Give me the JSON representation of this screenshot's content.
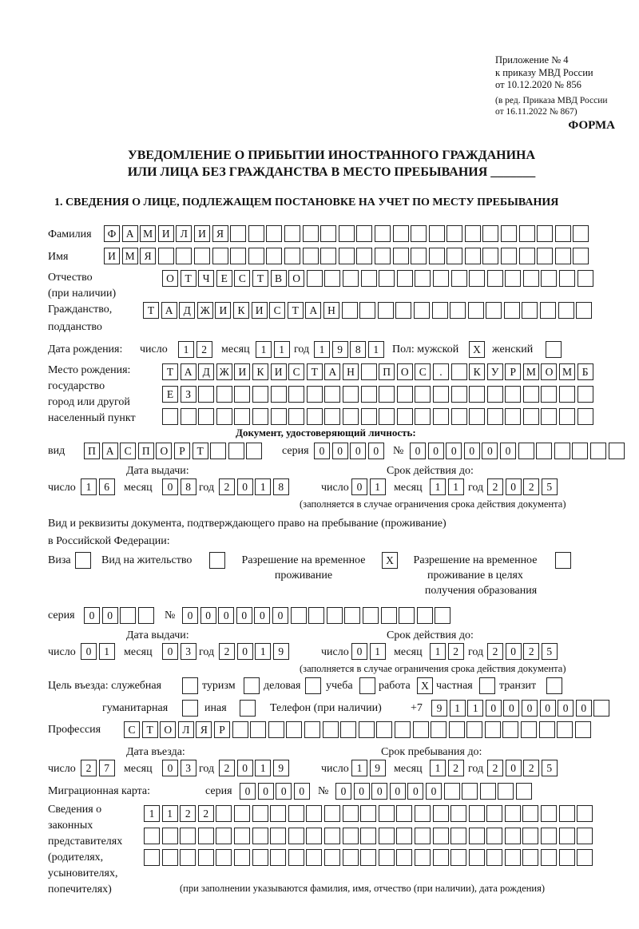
{
  "header": {
    "line1": "Приложение № 4",
    "line2": "к приказу МВД России",
    "line3": "от 10.12.2020 № 856",
    "line4": "(в ред. Приказа МВД России",
    "line5": "от 16.11.2022 № 867)",
    "forma": "ФОРМА"
  },
  "title": {
    "line1": "УВЕДОМЛЕНИЕ О ПРИБЫТИИ ИНОСТРАННОГО ГРАЖДАНИНА",
    "line2": "ИЛИ ЛИЦА БЕЗ ГРАЖДАНСТВА В МЕСТО ПРЕБЫВАНИЯ _______"
  },
  "section1": "1. СВЕДЕНИЯ О ЛИЦЕ, ПОДЛЕЖАЩЕМ ПОСТАНОВКЕ НА УЧЕТ ПО МЕСТУ ПРЕБЫВАНИЯ",
  "labels": {
    "surname": "Фамилия",
    "name": "Имя",
    "patronymic": "Отчество",
    "patronymic2": "(при наличии)",
    "citizenship": "Гражданство,",
    "citizenship2": "подданство",
    "birthdate": "Дата рождения:",
    "day": "число",
    "month": "месяц",
    "year": "год",
    "sex": "Пол: мужской",
    "female": "женский",
    "birthplace": "Место рождения:",
    "bp2": "государство",
    "bp3": "город или другой",
    "bp4": "населенный пункт",
    "iddoc": "Документ, удостоверяющий личность:",
    "kind": "вид",
    "series": "серия",
    "number": "№",
    "issue_date": "Дата выдачи:",
    "valid_until": "Срок действия до:",
    "valid_note": "(заполняется в случае ограничения срока действия документа)",
    "rightdoc1": "Вид и реквизиты документа, подтверждающего право на пребывание (проживание)",
    "rightdoc2": "в Российской Федерации:",
    "visa": "Виза",
    "residence": "Вид на жительство",
    "trp1": "Разрешение на временное",
    "trp2": "проживание",
    "trpe1": "Разрешение на временное",
    "trpe2": "проживание в целях",
    "trpe3": "получения образования",
    "purpose": "Цель въезда: служебная",
    "tourism": "туризм",
    "business": "деловая",
    "study": "учеба",
    "work": "работа",
    "private": "частная",
    "transit": "транзит",
    "humanitarian": "гуманитарная",
    "other": "иная",
    "phone": "Телефон (при наличии)",
    "phone_prefix": "+7",
    "profession": "Профессия",
    "entry_date": "Дата въезда:",
    "stay_until": "Срок пребывания до:",
    "migcard": "Миграционная карта:",
    "reps1": "Сведения о",
    "reps2": "законных",
    "reps3": "представителях",
    "reps4": "(родителях,",
    "reps5": "усыновителях,",
    "reps6": "попечителях)",
    "reps_note": "(при заполнении указываются фамилия, имя, отчество (при наличии), дата рождения)"
  },
  "values": {
    "surname": "ФАМИЛИЯ",
    "name": "ИМЯ",
    "patronymic": "ОТЧЕСТВО",
    "citizenship": "ТАДЖИКИСТАН",
    "birth_day": "12",
    "birth_month": "11",
    "birth_year": "1981",
    "sex_male": "X",
    "sex_female": "",
    "birthplace1": "ТАДЖИКИСТАН ПОС. КУРМОМБ",
    "birthplace2": "ЕЗ",
    "birthplace3": "",
    "doc_kind": "ПАСПОРТ",
    "doc_series": "0000",
    "doc_number": "000000",
    "doc_issue_day": "16",
    "doc_issue_month": "08",
    "doc_issue_year": "2018",
    "doc_valid_day": "01",
    "doc_valid_month": "11",
    "doc_valid_year": "2025",
    "visa": "",
    "residence": "",
    "trp": "X",
    "trpe": "",
    "rd_series": "00",
    "rd_number": "000000",
    "rd_issue_day": "01",
    "rd_issue_month": "03",
    "rd_issue_year": "2019",
    "rd_valid_day": "01",
    "rd_valid_month": "12",
    "rd_valid_year": "2025",
    "p_official": "",
    "p_tourism": "",
    "p_business": "",
    "p_study": "",
    "p_work": "X",
    "p_private": "",
    "p_transit": "",
    "p_humanitarian": "",
    "p_other": "",
    "phone": "911000000",
    "profession": "СТОЛЯР",
    "entry_day": "27",
    "entry_month": "03",
    "entry_year": "2019",
    "stay_day": "19",
    "stay_month": "12",
    "stay_year": "2025",
    "mig_series": "0000",
    "mig_number": "000000",
    "reps1": "1122",
    "reps2": "",
    "reps3": ""
  }
}
